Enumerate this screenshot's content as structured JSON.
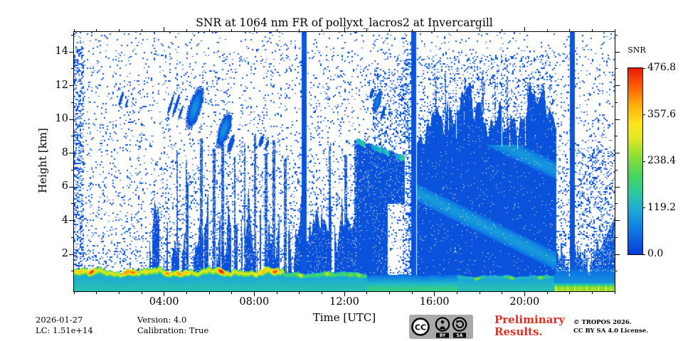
{
  "header": {
    "title": "SNR at 1064 nm FR of pollyxt_lacros2 at Invercargill"
  },
  "footer": {
    "date": "2026-01-27",
    "lc": "LC: 1.51e+14",
    "version": "Version: 4.0",
    "calibration": "Calibration: True",
    "preliminary_line1": "Preliminary",
    "preliminary_line2": "Results.",
    "copyright_line1": "© TROPOS 2026.",
    "copyright_line2": "CC BY SA 4.0 License.",
    "cc_badge": {
      "cc": "CC",
      "by": "BY",
      "sa": "SA"
    }
  },
  "chart_data": {
    "type": "heatmap",
    "title": "SNR at 1064 nm FR of pollyxt_lacros2 at Invercargill",
    "xlabel": "Time [UTC]",
    "ylabel": "Height [km]",
    "x_axis": {
      "range_hours": [
        0,
        24
      ],
      "major_ticks": [
        {
          "hour": 4,
          "label": "04:00"
        },
        {
          "hour": 8,
          "label": "08:00"
        },
        {
          "hour": 12,
          "label": "12:00"
        },
        {
          "hour": 16,
          "label": "16:00"
        },
        {
          "hour": 20,
          "label": "20:00"
        }
      ],
      "minor_tick_every_hours": 1
    },
    "y_axis": {
      "range_km": [
        -0.2,
        15.2
      ],
      "major_ticks_km": [
        2,
        4,
        6,
        8,
        10,
        12,
        14
      ],
      "minor_tick_every_km": 1
    },
    "colorbar": {
      "label": "SNR",
      "min": 0,
      "max": 476.8,
      "tick_values": [
        0.0,
        119.2,
        238.4,
        357.6,
        476.8
      ],
      "tick_labels": [
        "0.0",
        "119.2",
        "238.4",
        "357.6",
        "476.8"
      ]
    },
    "colormap_stops": [
      [
        0.0,
        8,
        60,
        215
      ],
      [
        0.14,
        15,
        125,
        228
      ],
      [
        0.25,
        30,
        175,
        210
      ],
      [
        0.33,
        45,
        200,
        160
      ],
      [
        0.42,
        70,
        212,
        95
      ],
      [
        0.52,
        135,
        222,
        55
      ],
      [
        0.62,
        222,
        232,
        35
      ],
      [
        0.7,
        252,
        230,
        25
      ],
      [
        0.8,
        255,
        175,
        10
      ],
      [
        0.9,
        255,
        95,
        5
      ],
      [
        1.0,
        232,
        25,
        10
      ]
    ],
    "features": {
      "calibration_stripe_hours": [
        10.2,
        15.05,
        22.1
      ],
      "surface_layer_top_km": 1.2,
      "virga_band": {
        "start_hour": 3.35,
        "end_hour": 13.25,
        "max_top_km": 7.6
      },
      "descending_layer": {
        "start_hour": 12.55,
        "end_hour": 14.68,
        "start_km": 8.85,
        "end_km": 7.8
      },
      "storm": {
        "start_hour": 15.25,
        "end_hour": 21.4,
        "top_km_range": [
          8.3,
          12.4
        ]
      },
      "low_clouds_evening": {
        "start_hour": 21.35,
        "top_km_range": [
          0.7,
          3.6
        ]
      },
      "cloud_blobs": [
        [
          2.08,
          11.25,
          0.07,
          0.45,
          0
        ],
        [
          2.32,
          10.95,
          0.05,
          0.3,
          0
        ],
        [
          4.28,
          10.9,
          0.06,
          0.65,
          0
        ],
        [
          4.52,
          10.85,
          0.07,
          0.75,
          0
        ],
        [
          4.72,
          10.4,
          0.05,
          0.5,
          0
        ],
        [
          5.35,
          10.7,
          0.3,
          1.35,
          0.14
        ],
        [
          6.65,
          9.4,
          0.27,
          1.15,
          0.14
        ],
        [
          6.95,
          8.55,
          0.12,
          0.6,
          0
        ],
        [
          8.3,
          8.75,
          0.1,
          0.4,
          0
        ],
        [
          8.55,
          8.5,
          0.07,
          0.35,
          0
        ],
        [
          13.2,
          11.55,
          0.08,
          0.35,
          0
        ],
        [
          13.45,
          11.05,
          0.16,
          0.75,
          0.1
        ],
        [
          13.7,
          10.4,
          0.08,
          0.5,
          0
        ]
      ],
      "virga_spikes": [
        [
          4.55,
          8.2
        ],
        [
          4.95,
          7.6
        ],
        [
          5.6,
          8.9
        ],
        [
          6.15,
          8.3
        ],
        [
          6.55,
          9.0
        ],
        [
          7.1,
          7.8
        ],
        [
          7.55,
          8.6
        ],
        [
          8.0,
          9.2
        ],
        [
          8.45,
          8.0
        ],
        [
          8.8,
          8.8
        ],
        [
          9.3,
          7.7
        ],
        [
          11.3,
          8.4
        ],
        [
          12.0,
          7.9
        ],
        [
          12.45,
          8.8
        ]
      ],
      "storm_spikes": [
        [
          16.0,
          12.6
        ],
        [
          16.45,
          12.9
        ],
        [
          17.3,
          12.5
        ],
        [
          18.1,
          12.8
        ],
        [
          18.65,
          12.3
        ],
        [
          19.2,
          12.6
        ],
        [
          20.1,
          12.2
        ],
        [
          20.7,
          11.9
        ]
      ]
    }
  }
}
